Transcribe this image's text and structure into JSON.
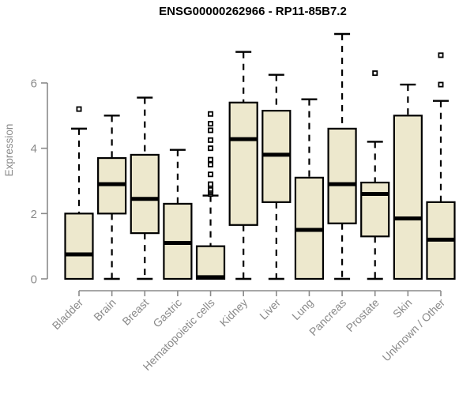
{
  "chart_data": {
    "type": "boxplot",
    "title": "ENSG00000262966 - RP11-85B7.2",
    "ylabel": "Expression",
    "yticks": [
      0,
      2,
      4,
      6
    ],
    "ylim": [
      0,
      7.6
    ],
    "grid": false,
    "legend": null,
    "categories": [
      "Bladder",
      "Brain",
      "Breast",
      "Gastric",
      "Hematopoietic cells",
      "Kidney",
      "Liver",
      "Lung",
      "Pancreas",
      "Prostate",
      "Skin",
      "Unknown / Other"
    ],
    "series": [
      {
        "name": "Bladder",
        "low": 0,
        "q1": 0,
        "median": 0.75,
        "q3": 2.0,
        "high": 4.6,
        "outliers": [
          5.2
        ]
      },
      {
        "name": "Brain",
        "low": 0,
        "q1": 2.0,
        "median": 2.9,
        "q3": 3.7,
        "high": 5.0,
        "outliers": []
      },
      {
        "name": "Breast",
        "low": 0,
        "q1": 1.4,
        "median": 2.45,
        "q3": 3.8,
        "high": 5.55,
        "outliers": []
      },
      {
        "name": "Gastric",
        "low": 0,
        "q1": 0,
        "median": 1.1,
        "q3": 2.3,
        "high": 3.95,
        "outliers": []
      },
      {
        "name": "Hematopoietic cells",
        "low": 0,
        "q1": 0,
        "median": 0.05,
        "q3": 1.0,
        "high": 2.55,
        "outliers": [
          2.6,
          2.65,
          2.7,
          2.75,
          2.85,
          2.9,
          3.2,
          3.5,
          3.65,
          4.0,
          4.25,
          4.55,
          4.75,
          5.05
        ]
      },
      {
        "name": "Kidney",
        "low": 0,
        "q1": 1.65,
        "median": 4.28,
        "q3": 5.4,
        "high": 6.95,
        "outliers": []
      },
      {
        "name": "Liver",
        "low": 0,
        "q1": 2.35,
        "median": 3.8,
        "q3": 5.15,
        "high": 6.25,
        "outliers": []
      },
      {
        "name": "Lung",
        "low": 0,
        "q1": 0,
        "median": 1.5,
        "q3": 3.1,
        "high": 5.5,
        "outliers": []
      },
      {
        "name": "Pancreas",
        "low": 0,
        "q1": 1.7,
        "median": 2.9,
        "q3": 4.6,
        "high": 7.5,
        "outliers": []
      },
      {
        "name": "Prostate",
        "low": 0,
        "q1": 1.3,
        "median": 2.6,
        "q3": 2.95,
        "high": 4.2,
        "outliers": [
          6.3
        ]
      },
      {
        "name": "Skin",
        "low": 0,
        "q1": 0,
        "median": 1.85,
        "q3": 5.0,
        "high": 5.95,
        "outliers": []
      },
      {
        "name": "Unknown / Other",
        "low": 0,
        "q1": 0,
        "median": 1.2,
        "q3": 2.35,
        "high": 5.45,
        "outliers": [
          5.95,
          6.85
        ]
      }
    ],
    "colors": {
      "box_fill": "#EDE8CD",
      "box_stroke": "#000000",
      "median": "#000000",
      "whisker": "#000000",
      "outlier_stroke": "#000000",
      "outlier_fill": "#FFFFFF",
      "axis": "#8A8A8A",
      "tick_label": "#8A8A8A",
      "title": "#000000",
      "background": "#FFFFFF"
    }
  }
}
